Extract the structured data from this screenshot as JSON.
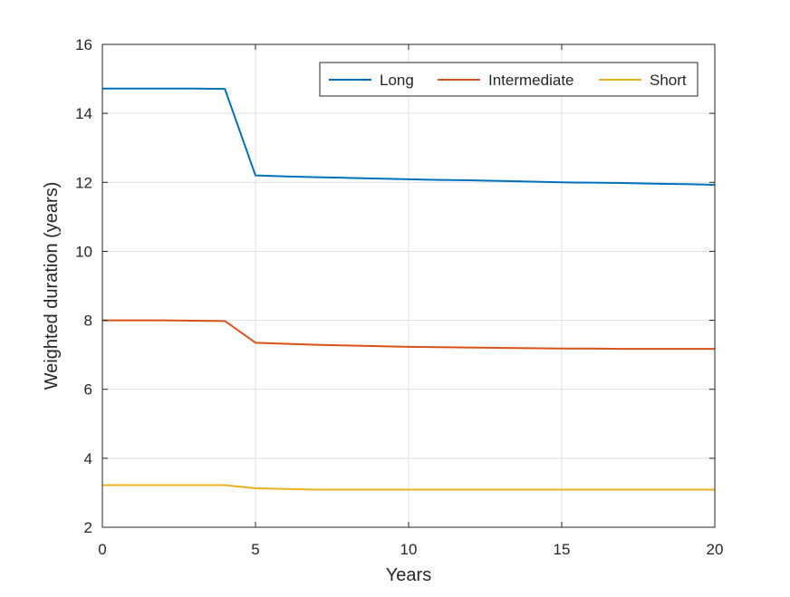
{
  "chart_data": {
    "type": "line",
    "title": "",
    "xlabel": "Years",
    "ylabel": "Weighted duration (years)",
    "xlim": [
      0,
      20
    ],
    "ylim": [
      2,
      16
    ],
    "xticks": [
      0,
      5,
      10,
      15,
      20
    ],
    "yticks": [
      2,
      4,
      6,
      8,
      10,
      12,
      14,
      16
    ],
    "xtick_labels": [
      "0",
      "5",
      "10",
      "15",
      "20"
    ],
    "ytick_labels": [
      "2",
      "4",
      "6",
      "8",
      "10",
      "12",
      "14",
      "16"
    ],
    "grid": true,
    "legend_position": "top-right",
    "legend_orientation": "horizontal",
    "series": [
      {
        "name": "Long",
        "color": "#0072BD",
        "x": [
          0,
          1,
          2,
          3,
          4,
          5,
          6,
          7,
          8,
          9,
          10,
          11,
          12,
          13,
          14,
          15,
          16,
          17,
          18,
          19,
          20
        ],
        "y": [
          14.72,
          14.72,
          14.72,
          14.72,
          14.71,
          12.2,
          12.17,
          12.15,
          12.13,
          12.11,
          12.09,
          12.07,
          12.06,
          12.04,
          12.02,
          12.0,
          11.99,
          11.98,
          11.96,
          11.95,
          11.93
        ]
      },
      {
        "name": "Intermediate",
        "color": "#D95319",
        "x": [
          0,
          1,
          2,
          3,
          4,
          5,
          6,
          7,
          8,
          9,
          10,
          11,
          12,
          13,
          14,
          15,
          16,
          17,
          18,
          19,
          20
        ],
        "y": [
          8.0,
          8.0,
          8.0,
          7.99,
          7.98,
          7.35,
          7.32,
          7.29,
          7.27,
          7.25,
          7.23,
          7.22,
          7.21,
          7.2,
          7.19,
          7.18,
          7.18,
          7.17,
          7.17,
          7.17,
          7.17
        ]
      },
      {
        "name": "Short",
        "color": "#EDB120",
        "x": [
          0,
          1,
          2,
          3,
          4,
          5,
          6,
          7,
          8,
          9,
          10,
          11,
          12,
          13,
          14,
          15,
          16,
          17,
          18,
          19,
          20
        ],
        "y": [
          3.22,
          3.22,
          3.22,
          3.22,
          3.22,
          3.13,
          3.11,
          3.09,
          3.09,
          3.09,
          3.09,
          3.09,
          3.09,
          3.09,
          3.09,
          3.09,
          3.09,
          3.09,
          3.09,
          3.09,
          3.09
        ]
      }
    ]
  }
}
